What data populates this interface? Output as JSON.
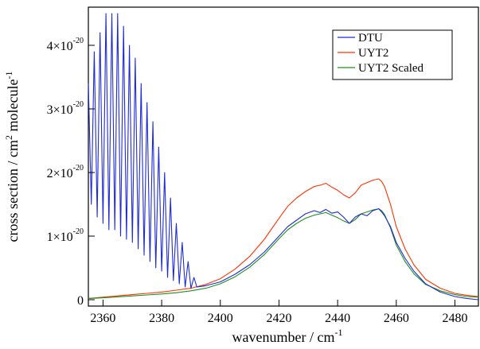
{
  "chart_data": {
    "type": "line",
    "xlabel_main": "wavenumber / cm",
    "xlabel_sup": "-1",
    "ylabel_parts": [
      "cross section / cm",
      "2",
      " molecule",
      "-1"
    ],
    "xlim": [
      2355,
      2488
    ],
    "ylim": [
      -1e-21,
      4.6e-20
    ],
    "x_ticks": [
      2360,
      2380,
      2400,
      2420,
      2440,
      2460,
      2480
    ],
    "x_tick_labels": [
      "2360",
      "2380",
      "2400",
      "2420",
      "2440",
      "2460",
      "2480"
    ],
    "y_ticks": [
      {
        "value": 0,
        "mantissa": "0",
        "exponent": ""
      },
      {
        "value": 1e-20,
        "mantissa": "1×10",
        "exponent": "-20"
      },
      {
        "value": 2e-20,
        "mantissa": "2×10",
        "exponent": "-20"
      },
      {
        "value": 3e-20,
        "mantissa": "3×10",
        "exponent": "-20"
      },
      {
        "value": 4e-20,
        "mantissa": "4×10",
        "exponent": "-20"
      }
    ],
    "legend_position": "top-right",
    "series": [
      {
        "name": "DTU",
        "color": "#1f2bd6",
        "x": [
          2355,
          2356,
          2357,
          2358,
          2359,
          2360,
          2361,
          2362,
          2363,
          2364,
          2365,
          2366,
          2367,
          2368,
          2369,
          2370,
          2371,
          2372,
          2373,
          2374,
          2375,
          2376,
          2377,
          2378,
          2379,
          2380,
          2381,
          2382,
          2383,
          2384,
          2385,
          2386,
          2387,
          2388,
          2389,
          2390,
          2391,
          2392,
          2395,
          2400,
          2405,
          2410,
          2415,
          2420,
          2423,
          2426,
          2429,
          2432,
          2434,
          2436,
          2438,
          2440,
          2442,
          2444,
          2446,
          2448,
          2450,
          2452,
          2454,
          2455,
          2456,
          2458,
          2460,
          2463,
          2466,
          2470,
          2475,
          2480,
          2484,
          2488
        ],
        "values": [
          3.4e-20,
          1.5e-20,
          3.9e-20,
          1.3e-20,
          4.2e-20,
          1.2e-20,
          4.5e-20,
          1.1e-20,
          4.5e-20,
          1.1e-20,
          4.5e-20,
          1e-20,
          4.3e-20,
          9.5e-21,
          4e-20,
          9e-21,
          3.8e-20,
          8e-21,
          3.4e-20,
          7e-21,
          3.1e-20,
          6e-21,
          2.8e-20,
          5e-21,
          2.4e-20,
          4.5e-21,
          2e-20,
          3.5e-21,
          1.6e-20,
          3e-21,
          1.2e-20,
          2.5e-21,
          9e-21,
          2e-21,
          6e-21,
          1.8e-21,
          3.5e-21,
          2e-21,
          2.2e-21,
          2.8e-21,
          4e-21,
          5.5e-21,
          7.5e-21,
          1e-20,
          1.15e-20,
          1.25e-20,
          1.35e-20,
          1.4e-20,
          1.37e-20,
          1.42e-20,
          1.36e-20,
          1.38e-20,
          1.3e-20,
          1.2e-20,
          1.3e-20,
          1.35e-20,
          1.32e-20,
          1.4e-20,
          1.43e-20,
          1.38e-20,
          1.32e-20,
          1.15e-20,
          9e-21,
          6.5e-21,
          4.5e-21,
          2.5e-21,
          1.2e-21,
          5e-22,
          2e-22,
          0.0
        ]
      },
      {
        "name": "UYT2",
        "color": "#ff3300",
        "x": [
          2355,
          2360,
          2365,
          2370,
          2375,
          2380,
          2385,
          2390,
          2395,
          2400,
          2405,
          2410,
          2415,
          2420,
          2423,
          2426,
          2429,
          2432,
          2434,
          2436,
          2438,
          2440,
          2442,
          2444,
          2446,
          2448,
          2450,
          2452,
          2454,
          2455,
          2456,
          2458,
          2460,
          2463,
          2466,
          2470,
          2475,
          2480,
          2484,
          2488
        ],
        "values": [
          2e-22,
          4e-22,
          6e-22,
          8e-22,
          1e-21,
          1.2e-21,
          1.5e-21,
          1.8e-21,
          2.4e-21,
          3.3e-21,
          4.8e-21,
          6.8e-21,
          9.5e-21,
          1.28e-20,
          1.47e-20,
          1.6e-20,
          1.7e-20,
          1.78e-20,
          1.8e-20,
          1.83e-20,
          1.77e-20,
          1.72e-20,
          1.65e-20,
          1.6e-20,
          1.68e-20,
          1.8e-20,
          1.84e-20,
          1.88e-20,
          1.9e-20,
          1.86e-20,
          1.78e-20,
          1.5e-20,
          1.15e-20,
          8e-21,
          5.5e-21,
          3.2e-21,
          1.8e-21,
          1e-21,
          7e-22,
          5e-22
        ]
      },
      {
        "name": "UYT2 Scaled",
        "color": "#1f8f1f",
        "x": [
          2355,
          2360,
          2365,
          2370,
          2375,
          2380,
          2385,
          2390,
          2395,
          2400,
          2405,
          2410,
          2415,
          2420,
          2423,
          2426,
          2429,
          2432,
          2434,
          2436,
          2438,
          2440,
          2442,
          2444,
          2446,
          2448,
          2450,
          2452,
          2454,
          2455,
          2456,
          2458,
          2460,
          2463,
          2466,
          2470,
          2475,
          2480,
          2484,
          2488
        ],
        "values": [
          2e-22,
          3e-22,
          4.5e-22,
          6e-22,
          7.5e-22,
          9e-22,
          1.1e-21,
          1.4e-21,
          1.8e-21,
          2.5e-21,
          3.6e-21,
          5.1e-21,
          7.1e-21,
          9.6e-21,
          1.1e-20,
          1.2e-20,
          1.28e-20,
          1.33e-20,
          1.35e-20,
          1.37e-20,
          1.33e-20,
          1.29e-20,
          1.24e-20,
          1.2e-20,
          1.26e-20,
          1.35e-20,
          1.38e-20,
          1.41e-20,
          1.43e-20,
          1.4e-20,
          1.34e-20,
          1.13e-20,
          8.6e-21,
          6e-21,
          4.1e-21,
          2.4e-21,
          1.4e-21,
          8e-22,
          5e-22,
          4e-22
        ]
      }
    ]
  }
}
